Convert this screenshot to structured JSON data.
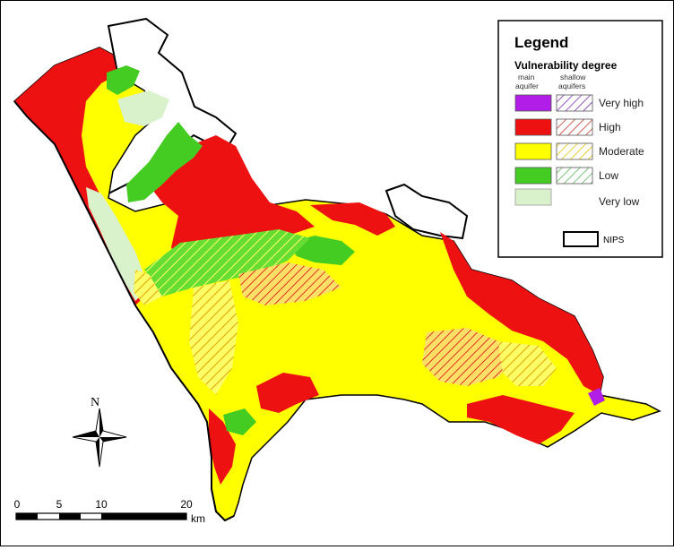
{
  "legend": {
    "title": "Legend",
    "subtitle": "Vulnerability degree",
    "col_main_line1": "main",
    "col_main_line2": "aquifer",
    "col_shallow_line1": "shallow",
    "col_shallow_line2": "aquifers",
    "classes": [
      {
        "label": "Very high",
        "color": "#b01ee8",
        "hatch": "#7a2aa8"
      },
      {
        "label": "High",
        "color": "#ee1111",
        "hatch": "#c0392b"
      },
      {
        "label": "Moderate",
        "color": "#ffff00",
        "hatch": "#e5c400"
      },
      {
        "label": "Low",
        "color": "#44cc22",
        "hatch": "#5cb85c"
      },
      {
        "label": "Very low",
        "color": "#d9f2cc",
        "hatch": ""
      }
    ],
    "boundary_label": "NIPS"
  },
  "north_arrow": {
    "label": "N"
  },
  "scale_bar": {
    "ticks": [
      "0",
      "5",
      "10",
      "20"
    ],
    "unit": "km"
  }
}
